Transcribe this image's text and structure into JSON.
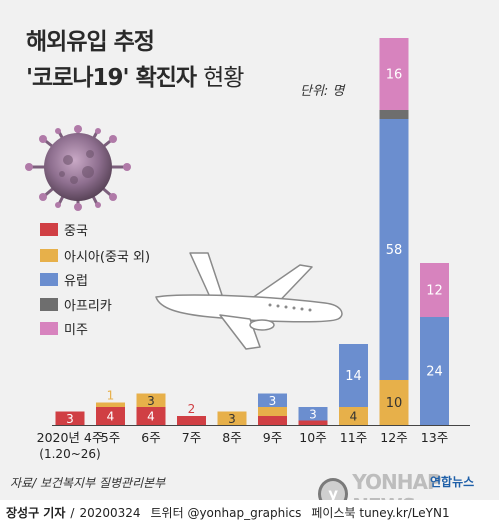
{
  "title_line1": "해외유입 추정",
  "title_line2_bold": "'코로나19' 확진자",
  "title_line2_light": "현황",
  "unit_label": "단위: 명",
  "source_label": "자료/ 보건복지부 질병관리본부",
  "footer": {
    "reporter": "장성구 기자",
    "date": "20200324",
    "twitter": "트위터 @yonhap_graphics",
    "facebook": "페이스북 tuney.kr/LeYN1"
  },
  "logo": {
    "text": "YONHAP NEWS",
    "korean": "연합뉴스"
  },
  "colors": {
    "china": "#d03f44",
    "asia": "#e7b04a",
    "europe": "#6b8ecf",
    "africa": "#6e6e6e",
    "america": "#d783be"
  },
  "chart_data": {
    "type": "bar",
    "stacked": true,
    "categories": [
      "2020년 4주\n(1.20~26)",
      "5주",
      "6주",
      "7주",
      "8주",
      "9주",
      "10주",
      "11주",
      "12주",
      "13주"
    ],
    "series": [
      {
        "name": "중국",
        "color": "#d03f44",
        "values": [
          3,
          4,
          4,
          2,
          0,
          2,
          1,
          0,
          0,
          0
        ]
      },
      {
        "name": "아시아(중국 외)",
        "color": "#e7b04a",
        "values": [
          0,
          1,
          3,
          0,
          3,
          2,
          0,
          4,
          10,
          0
        ]
      },
      {
        "name": "유럽",
        "color": "#6b8ecf",
        "values": [
          0,
          0,
          0,
          0,
          0,
          3,
          3,
          14,
          58,
          24
        ]
      },
      {
        "name": "아프리카",
        "color": "#6e6e6e",
        "values": [
          0,
          0,
          0,
          0,
          0,
          0,
          0,
          0,
          2,
          0
        ]
      },
      {
        "name": "미주",
        "color": "#d783be",
        "values": [
          0,
          0,
          0,
          0,
          0,
          0,
          0,
          0,
          16,
          12
        ]
      }
    ],
    "ylim": [
      0,
      90
    ],
    "grid": false,
    "legend_position": "left",
    "xlabel": "",
    "ylabel": ""
  }
}
